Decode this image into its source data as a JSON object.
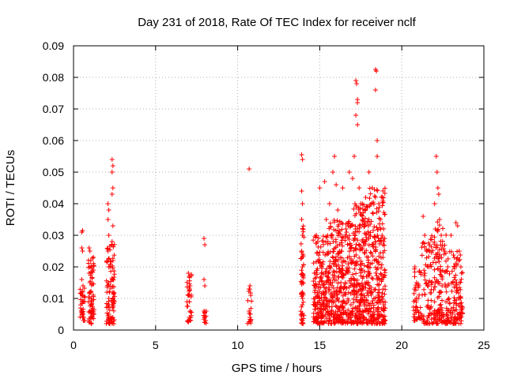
{
  "chart_data": {
    "type": "scatter",
    "title": "Day 231 of 2018, Rate Of TEC Index for receiver nclf",
    "xlabel": "GPS time / hours",
    "ylabel": "ROTI / TECUs",
    "xlim": [
      0,
      25
    ],
    "ylim": [
      0,
      0.09
    ],
    "xticks": [
      0,
      5,
      10,
      15,
      20,
      25
    ],
    "xtick_labels": [
      "0",
      "5",
      "10",
      "15",
      "20",
      "25"
    ],
    "yticks": [
      0,
      0.01,
      0.02,
      0.03,
      0.04,
      0.05,
      0.06,
      0.07,
      0.08,
      0.09
    ],
    "ytick_labels": [
      "0",
      "0.01",
      "0.02",
      "0.03",
      "0.04",
      "0.05",
      "0.06",
      "0.07",
      "0.08",
      "0.09"
    ],
    "grid": true,
    "marker": "+",
    "series": [
      {
        "name": "ROTI",
        "color": "#ff0000",
        "points": [
          [
            0.5,
            0.031
          ],
          [
            0.55,
            0.0315
          ],
          [
            0.5,
            0.026
          ],
          [
            0.55,
            0.025
          ],
          [
            0.5,
            0.016
          ],
          [
            0.5,
            0.012
          ],
          [
            0.55,
            0.011
          ],
          [
            0.6,
            0.009
          ],
          [
            0.5,
            0.005
          ],
          [
            0.55,
            0.004
          ],
          [
            0.6,
            0.003
          ],
          [
            0.95,
            0.026
          ],
          [
            1.0,
            0.025
          ],
          [
            1.05,
            0.022
          ],
          [
            1.0,
            0.02
          ],
          [
            0.95,
            0.018
          ],
          [
            1.0,
            0.015
          ],
          [
            1.05,
            0.012
          ],
          [
            1.0,
            0.01
          ],
          [
            1.1,
            0.008
          ],
          [
            1.0,
            0.006
          ],
          [
            1.05,
            0.004
          ],
          [
            1.1,
            0.002
          ],
          [
            2.1,
            0.04
          ],
          [
            2.15,
            0.038
          ],
          [
            2.1,
            0.035
          ],
          [
            2.15,
            0.03
          ],
          [
            2.1,
            0.025
          ],
          [
            2.15,
            0.02
          ],
          [
            2.1,
            0.015
          ],
          [
            2.2,
            0.012
          ],
          [
            2.1,
            0.008
          ],
          [
            2.15,
            0.005
          ],
          [
            2.2,
            0.003
          ],
          [
            2.35,
            0.054
          ],
          [
            2.4,
            0.052
          ],
          [
            2.35,
            0.05
          ],
          [
            2.4,
            0.045
          ],
          [
            2.35,
            0.043
          ],
          [
            2.4,
            0.033
          ],
          [
            2.35,
            0.028
          ],
          [
            2.4,
            0.022
          ],
          [
            2.35,
            0.016
          ],
          [
            2.4,
            0.012
          ],
          [
            2.35,
            0.008
          ],
          [
            2.4,
            0.004
          ],
          [
            7.0,
            0.018
          ],
          [
            7.05,
            0.017
          ],
          [
            7.1,
            0.014
          ],
          [
            7.0,
            0.011
          ],
          [
            7.05,
            0.009
          ],
          [
            7.1,
            0.006
          ],
          [
            7.05,
            0.004
          ],
          [
            7.0,
            0.003
          ],
          [
            7.95,
            0.029
          ],
          [
            8.0,
            0.027
          ],
          [
            7.95,
            0.016
          ],
          [
            8.0,
            0.014
          ],
          [
            7.95,
            0.006
          ],
          [
            8.0,
            0.004
          ],
          [
            8.05,
            0.003
          ],
          [
            10.7,
            0.051
          ],
          [
            10.75,
            0.014
          ],
          [
            10.7,
            0.013
          ],
          [
            10.8,
            0.011
          ],
          [
            10.7,
            0.006
          ],
          [
            10.75,
            0.004
          ],
          [
            10.8,
            0.003
          ],
          [
            13.9,
            0.0555
          ],
          [
            13.95,
            0.054
          ],
          [
            13.9,
            0.044
          ],
          [
            13.95,
            0.04
          ],
          [
            13.9,
            0.035
          ],
          [
            13.95,
            0.03
          ],
          [
            13.9,
            0.025
          ],
          [
            13.95,
            0.02
          ],
          [
            13.9,
            0.015
          ],
          [
            13.95,
            0.01
          ],
          [
            13.9,
            0.005
          ],
          [
            13.95,
            0.003
          ],
          [
            14.8,
            0.03
          ],
          [
            14.9,
            0.022
          ],
          [
            15.0,
            0.045
          ],
          [
            15.1,
            0.018
          ],
          [
            15.2,
            0.012
          ],
          [
            15.3,
            0.047
          ],
          [
            15.4,
            0.035
          ],
          [
            15.5,
            0.028
          ],
          [
            15.6,
            0.04
          ],
          [
            15.7,
            0.03
          ],
          [
            15.8,
            0.05
          ],
          [
            15.9,
            0.055
          ],
          [
            16.0,
            0.046
          ],
          [
            16.1,
            0.038
          ],
          [
            16.2,
            0.025
          ],
          [
            16.4,
            0.045
          ],
          [
            16.6,
            0.032
          ],
          [
            16.8,
            0.05
          ],
          [
            17.0,
            0.048
          ],
          [
            17.1,
            0.055
          ],
          [
            17.2,
            0.079
          ],
          [
            17.25,
            0.078
          ],
          [
            17.3,
            0.073
          ],
          [
            17.3,
            0.072
          ],
          [
            17.2,
            0.068
          ],
          [
            17.3,
            0.065
          ],
          [
            17.4,
            0.045
          ],
          [
            17.5,
            0.04
          ],
          [
            17.6,
            0.035
          ],
          [
            17.8,
            0.042
          ],
          [
            18.0,
            0.05
          ],
          [
            18.2,
            0.045
          ],
          [
            18.4,
            0.0825
          ],
          [
            18.45,
            0.082
          ],
          [
            18.4,
            0.076
          ],
          [
            18.5,
            0.06
          ],
          [
            18.5,
            0.055
          ],
          [
            18.6,
            0.04
          ],
          [
            18.7,
            0.035
          ],
          [
            18.8,
            0.03
          ],
          [
            18.9,
            0.028
          ],
          [
            20.8,
            0.02
          ],
          [
            20.9,
            0.015
          ],
          [
            21.0,
            0.01
          ],
          [
            21.3,
            0.036
          ],
          [
            21.4,
            0.03
          ],
          [
            21.5,
            0.025
          ],
          [
            21.6,
            0.02
          ],
          [
            21.8,
            0.015
          ],
          [
            22.0,
            0.04
          ],
          [
            22.1,
            0.055
          ],
          [
            22.15,
            0.05
          ],
          [
            22.2,
            0.045
          ],
          [
            22.25,
            0.043
          ],
          [
            22.3,
            0.035
          ],
          [
            22.4,
            0.03
          ],
          [
            22.6,
            0.025
          ],
          [
            22.8,
            0.02
          ],
          [
            23.0,
            0.03
          ],
          [
            23.2,
            0.02
          ],
          [
            23.3,
            0.034
          ],
          [
            23.4,
            0.033
          ],
          [
            23.5,
            0.025
          ],
          [
            23.6,
            0.02
          ],
          [
            23.5,
            0.015
          ],
          [
            23.5,
            0.01
          ]
        ],
        "dense_bands": [
          {
            "x": [
              0.4,
              0.7
            ],
            "y": [
              0.003,
              0.014
            ],
            "n": 30
          },
          {
            "x": [
              0.9,
              1.25
            ],
            "y": [
              0.002,
              0.025
            ],
            "n": 60
          },
          {
            "x": [
              2.0,
              2.5
            ],
            "y": [
              0.002,
              0.028
            ],
            "n": 90
          },
          {
            "x": [
              6.9,
              7.2
            ],
            "y": [
              0.002,
              0.018
            ],
            "n": 30
          },
          {
            "x": [
              7.9,
              8.1
            ],
            "y": [
              0.002,
              0.006
            ],
            "n": 10
          },
          {
            "x": [
              10.6,
              10.85
            ],
            "y": [
              0.002,
              0.015
            ],
            "n": 14
          },
          {
            "x": [
              13.85,
              14.05
            ],
            "y": [
              0.002,
              0.035
            ],
            "n": 50
          },
          {
            "x": [
              14.6,
              15.5
            ],
            "y": [
              0.002,
              0.03
            ],
            "n": 180
          },
          {
            "x": [
              15.5,
              17.0
            ],
            "y": [
              0.002,
              0.035
            ],
            "n": 320
          },
          {
            "x": [
              17.0,
              18.0
            ],
            "y": [
              0.002,
              0.04
            ],
            "n": 260
          },
          {
            "x": [
              18.0,
              19.0
            ],
            "y": [
              0.002,
              0.045
            ],
            "n": 240
          },
          {
            "x": [
              20.7,
              21.2
            ],
            "y": [
              0.003,
              0.02
            ],
            "n": 45
          },
          {
            "x": [
              21.2,
              22.0
            ],
            "y": [
              0.002,
              0.03
            ],
            "n": 90
          },
          {
            "x": [
              22.0,
              22.7
            ],
            "y": [
              0.002,
              0.035
            ],
            "n": 110
          },
          {
            "x": [
              22.7,
              23.7
            ],
            "y": [
              0.002,
              0.025
            ],
            "n": 130
          }
        ]
      }
    ]
  }
}
